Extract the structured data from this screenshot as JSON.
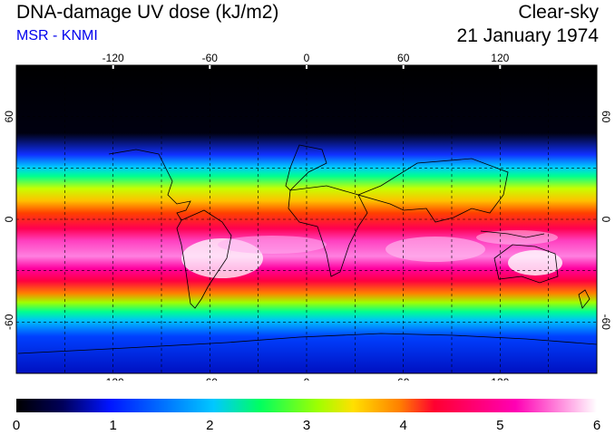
{
  "header": {
    "title": "DNA-damage UV dose (kJ/m2)",
    "source": "MSR - KNMI",
    "sky_condition": "Clear-sky",
    "date": "21 January 1974"
  },
  "map": {
    "projection": "equirectangular",
    "lon_range": [
      -180,
      180
    ],
    "lat_range": [
      -90,
      90
    ],
    "lon_ticks": [
      "-120",
      "-60",
      "0",
      "60",
      "120"
    ],
    "lon_tick_values": [
      -120,
      -60,
      0,
      60,
      120
    ],
    "lat_ticks": [
      "60",
      "0",
      "-60"
    ],
    "lat_tick_values": [
      60,
      0,
      -60
    ],
    "grid": "dashed every 30 degrees",
    "features": [
      "coastlines",
      "continents"
    ]
  },
  "colorbar": {
    "labels": [
      "0",
      "1",
      "2",
      "3",
      "4",
      "5",
      "6"
    ],
    "min": 0,
    "max": 6,
    "colors": [
      "#000000",
      "#0014ff",
      "#00c8ff",
      "#00ff60",
      "#ffe000",
      "#ff8000",
      "#ff0030",
      "#ff00b4",
      "#ffffff"
    ]
  },
  "colors": {
    "background": "#ffffff",
    "source_text": "#0000ee",
    "coastline": "#000000"
  }
}
